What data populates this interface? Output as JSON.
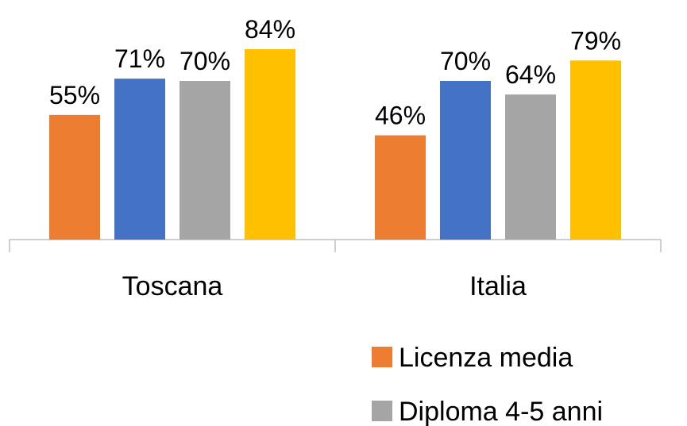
{
  "chart_data": {
    "type": "bar",
    "categories": [
      "Toscana",
      "Italia"
    ],
    "series": [
      {
        "name": "Licenza media",
        "color": "#ED7D31",
        "values": [
          55,
          46
        ],
        "value_labels": [
          "55%",
          "46%"
        ]
      },
      {
        "color": "#4472C4",
        "values": [
          71,
          70
        ],
        "value_labels": [
          "71%",
          "70%"
        ]
      },
      {
        "name": "Diploma 4-5 anni",
        "color": "#A5A5A5",
        "values": [
          70,
          64
        ],
        "value_labels": [
          "70%",
          "64%"
        ]
      },
      {
        "color": "#FFC000",
        "values": [
          84,
          79
        ],
        "value_labels": [
          "84%",
          "79%"
        ]
      }
    ],
    "legend": "bottom-right"
  }
}
